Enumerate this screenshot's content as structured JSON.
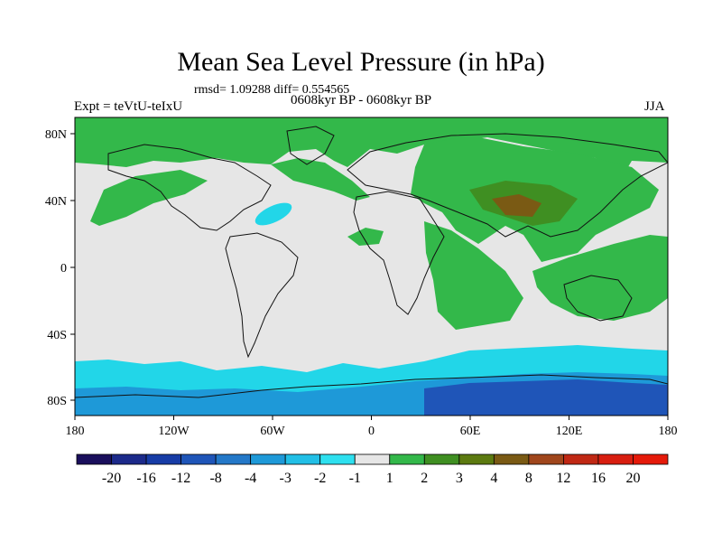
{
  "title": "Mean Sea Level Pressure (in hPa)",
  "stats": "rmsd= 1.09288 diff= 0.554565",
  "experiment": "Expt = teVtU-teIxU",
  "period": "0608kyr BP - 0608kyr BP",
  "season": "JJA",
  "lat_labels": [
    "80N",
    "40N",
    "0",
    "40S",
    "80S"
  ],
  "lon_labels": [
    "180",
    "120W",
    "60W",
    "0",
    "60E",
    "120E",
    "180"
  ],
  "colorbar": {
    "labels": [
      "-20",
      "-16",
      "-12",
      "-8",
      "-4",
      "-3",
      "-2",
      "-1",
      "1",
      "2",
      "3",
      "4",
      "8",
      "12",
      "16",
      "20"
    ],
    "colors": [
      "#1a0f5c",
      "#1c2a8a",
      "#173ca6",
      "#1f55b8",
      "#2478c8",
      "#1e99d8",
      "#22bfe6",
      "#2ee0ef",
      "#e6e6e6",
      "#33b84a",
      "#3f8f22",
      "#5c7a10",
      "#7a5a14",
      "#a0461c",
      "#c02814",
      "#d81e10",
      "#e51a0a"
    ]
  },
  "colors": {
    "neutral": "#e6e6e6",
    "positive_1": "#33b84a",
    "positive_2": "#3f8f22",
    "positive_3": "#7a5a14",
    "negative_1": "#22d6e8",
    "negative_2": "#1e99d8",
    "negative_3": "#1f55b8",
    "coast": "#111111"
  }
}
